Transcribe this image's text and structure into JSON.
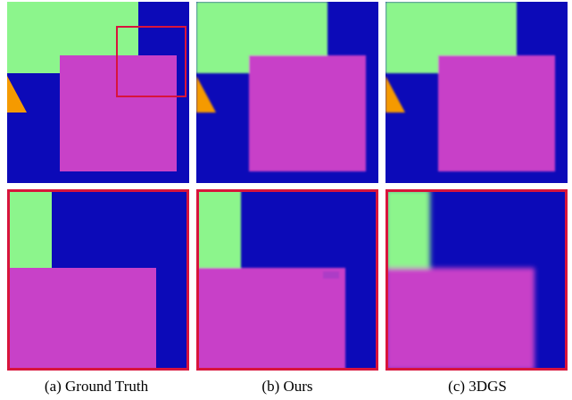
{
  "captions": [
    "(a) Ground Truth",
    "(b) Ours",
    "(c) 3DGS"
  ]
}
